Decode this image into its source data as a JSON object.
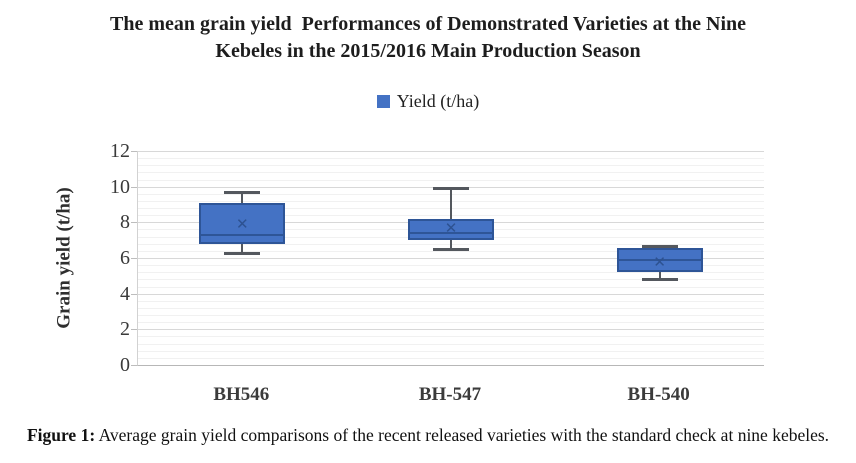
{
  "chart_data": {
    "type": "boxplot",
    "title_lines": [
      "The mean grain yield  Performances of Demonstrated Varieties at the Nine",
      "Kebeles in the 2015/2016 Main Production Season"
    ],
    "legend": [
      "Yield (t/ha)"
    ],
    "legend_position": "top",
    "ylabel": "Grain yield (t/ha)",
    "xlabel": "",
    "ylim": [
      0,
      12
    ],
    "yticks": [
      0,
      2,
      4,
      6,
      8,
      10,
      12
    ],
    "minor_unit": 0.4,
    "grid": "major+minor horizontal",
    "categories": [
      "BH546",
      "BH-547",
      "BH-540"
    ],
    "boxes": [
      {
        "category": "BH546",
        "min": 6.3,
        "q1": 6.8,
        "median": 7.3,
        "q3": 9.1,
        "max": 9.7,
        "mean": 7.9
      },
      {
        "category": "BH-547",
        "min": 6.5,
        "q1": 7.0,
        "median": 7.4,
        "q3": 8.2,
        "max": 9.9,
        "mean": 7.7
      },
      {
        "category": "BH-540",
        "min": 4.85,
        "q1": 5.2,
        "median": 5.9,
        "q3": 6.55,
        "max": 6.7,
        "mean": 5.8
      }
    ]
  },
  "caption": {
    "prefix": "Figure 1:",
    "text": " Average grain yield comparisons of the recent released varieties with the standard check at nine kebeles."
  },
  "colors": {
    "box_fill": "#4472c4",
    "box_border": "#2e5597",
    "median": "#2e5597",
    "mean_marker": "#2d5291",
    "whisker": "#54585e",
    "legend_swatch": "#4472c4"
  }
}
